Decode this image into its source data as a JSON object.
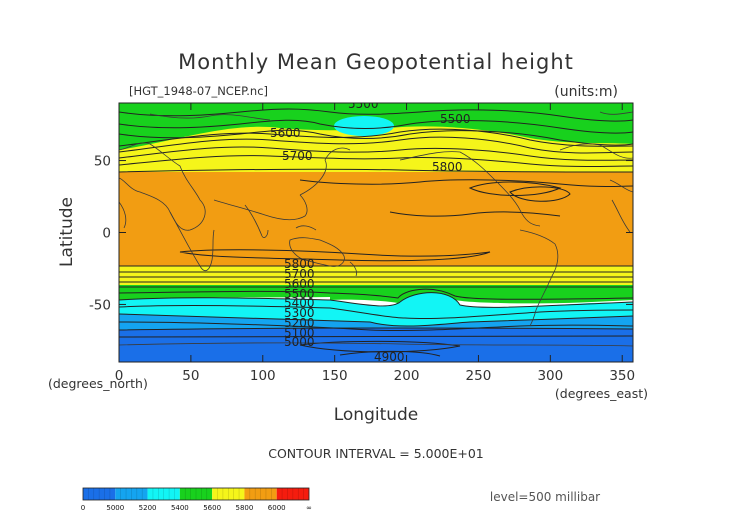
{
  "chart_data": {
    "type": "contour map",
    "title": "Monthly Mean Geopotential height",
    "file_label": "[HGT_1948-07_NCEP.nc]",
    "units": "(units:m)",
    "xlabel": "Longitude",
    "ylabel": "Latitude",
    "xunits": "(degrees_east)",
    "yunits": "(degrees_north)",
    "xlim": [
      0,
      357.5
    ],
    "ylim": [
      -90,
      90
    ],
    "x_ticks": [
      "0",
      "50",
      "100",
      "150",
      "200",
      "250",
      "300",
      "350"
    ],
    "y_ticks": [
      "50",
      "0",
      "-50"
    ],
    "contour_interval_text": "CONTOUR INTERVAL = 5.000E+01",
    "level_text": "level=500 millibar",
    "contour_labels": [
      "5500",
      "5500",
      "5600",
      "5700",
      "5800",
      "5800",
      "5700",
      "5600",
      "5500",
      "5400",
      "5300",
      "5200",
      "5100",
      "5000",
      "4900"
    ],
    "colorbar": {
      "ticks": [
        "0",
        "5000",
        "5200",
        "5400",
        "5600",
        "5800",
        "6000",
        "∞"
      ],
      "colors": [
        "#1a6fe8",
        "#14a4f0",
        "#12f5f5",
        "#18d11d",
        "#f5f51a",
        "#f29d12",
        "#f51c0e"
      ]
    }
  }
}
